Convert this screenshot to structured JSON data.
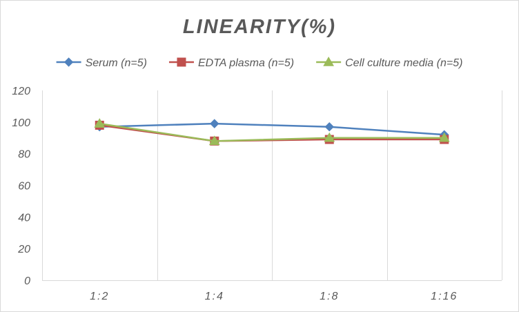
{
  "chart_data": {
    "type": "line",
    "title": "LINEARITY(%)",
    "xlabel": "",
    "ylabel": "",
    "categories": [
      "1:2",
      "1:4",
      "1:8",
      "1:16"
    ],
    "ylim": [
      0,
      120
    ],
    "yticks": [
      0,
      20,
      40,
      60,
      80,
      100,
      120
    ],
    "grid": "vertical",
    "legend": "top",
    "series": [
      {
        "name": "Serum (n=5)",
        "values": [
          97,
          99,
          97,
          92
        ],
        "color": "#4F81BD",
        "marker": "diamond"
      },
      {
        "name": "EDTA plasma (n=5)",
        "values": [
          98,
          88,
          89,
          89
        ],
        "color": "#C0504D",
        "marker": "square"
      },
      {
        "name": "Cell culture media (n=5)",
        "values": [
          99,
          88,
          90,
          90
        ],
        "color": "#9BBB59",
        "marker": "triangle"
      }
    ]
  }
}
